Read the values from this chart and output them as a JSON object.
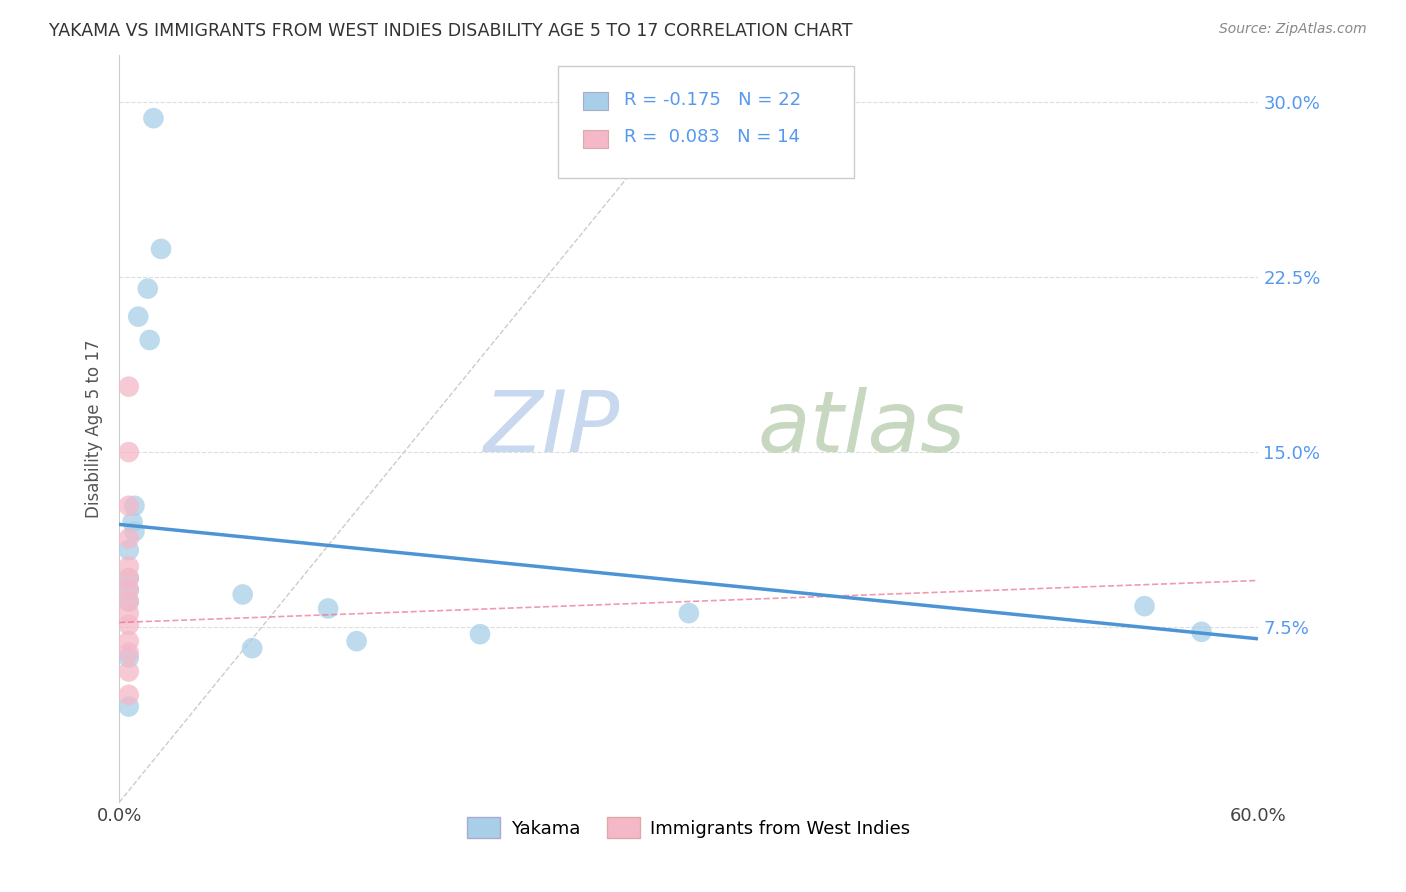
{
  "title": "YAKAMA VS IMMIGRANTS FROM WEST INDIES DISABILITY AGE 5 TO 17 CORRELATION CHART",
  "source": "Source: ZipAtlas.com",
  "ylabel": "Disability Age 5 to 17",
  "ytick_labels": [
    "",
    "7.5%",
    "15.0%",
    "22.5%",
    "30.0%"
  ],
  "ytick_values": [
    0.0,
    0.075,
    0.15,
    0.225,
    0.3
  ],
  "xlim": [
    0.0,
    0.6
  ],
  "ylim": [
    0.0,
    0.32
  ],
  "legend_blue_r": "R = -0.175",
  "legend_blue_n": "N = 22",
  "legend_pink_r": "R =  0.083",
  "legend_pink_n": "N = 14",
  "legend_label_blue": "Yakama",
  "legend_label_pink": "Immigrants from West Indies",
  "blue_scatter_x": [
    0.018,
    0.022,
    0.015,
    0.01,
    0.016,
    0.008,
    0.008,
    0.007,
    0.005,
    0.005,
    0.005,
    0.005,
    0.065,
    0.11,
    0.19,
    0.3,
    0.54,
    0.57,
    0.125,
    0.07,
    0.005,
    0.005
  ],
  "blue_scatter_y": [
    0.293,
    0.237,
    0.22,
    0.208,
    0.198,
    0.127,
    0.116,
    0.12,
    0.108,
    0.096,
    0.086,
    0.062,
    0.089,
    0.083,
    0.072,
    0.081,
    0.084,
    0.073,
    0.069,
    0.066,
    0.091,
    0.041
  ],
  "pink_scatter_x": [
    0.005,
    0.005,
    0.005,
    0.005,
    0.005,
    0.005,
    0.005,
    0.005,
    0.005,
    0.005,
    0.005,
    0.005,
    0.005,
    0.005
  ],
  "pink_scatter_y": [
    0.178,
    0.15,
    0.127,
    0.113,
    0.101,
    0.096,
    0.091,
    0.086,
    0.081,
    0.076,
    0.069,
    0.064,
    0.056,
    0.046
  ],
  "blue_line_x": [
    0.0,
    0.6
  ],
  "blue_line_y": [
    0.119,
    0.07
  ],
  "pink_line_x": [
    0.0,
    0.014
  ],
  "pink_line_y": [
    0.08,
    0.082
  ],
  "diagonal_line_x": [
    0.0,
    0.3
  ],
  "diagonal_line_y": [
    0.0,
    0.3
  ],
  "blue_color": "#a8cfe8",
  "pink_color": "#f4b8c8",
  "blue_line_color": "#4d94d4",
  "pink_line_color": "#e87090",
  "diagonal_color": "#cccccc",
  "watermark_zip_color": "#c8d8ee",
  "watermark_atlas_color": "#c8d8c0",
  "title_color": "#333333",
  "right_tick_color": "#5599ee",
  "background_color": "#ffffff",
  "grid_color": "#dddddd"
}
